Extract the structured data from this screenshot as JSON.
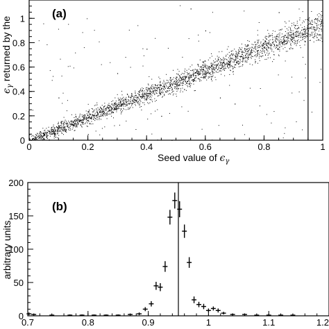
{
  "chart_data": [
    {
      "type": "scatter",
      "panel_label": "(a)",
      "xlabel": "Seed value of ε_γ",
      "ylabel": "ε_γ returned by the",
      "xlim": [
        0,
        1
      ],
      "ylim": [
        0,
        1.15
      ],
      "x_ticks": [
        0,
        0.2,
        0.4,
        0.6,
        0.8,
        1
      ],
      "x_tick_labels": [
        "0",
        "0.2",
        "0.4",
        "0.6",
        "0.8",
        "1"
      ],
      "y_ticks": [
        0,
        0.2,
        0.4,
        0.6,
        0.8,
        1
      ],
      "y_tick_labels": [
        "0",
        "0.2",
        "0.4",
        "0.6",
        "0.8",
        "1"
      ],
      "trend": {
        "slope": 0.95,
        "intercept": 0.0
      },
      "vertical_line_x": 0.95,
      "points": [
        [
          0.02,
          0.03
        ],
        [
          0.05,
          0.04
        ],
        [
          0.08,
          0.07
        ],
        [
          0.1,
          0.1
        ],
        [
          0.12,
          0.11
        ],
        [
          0.15,
          0.15
        ],
        [
          0.18,
          0.17
        ],
        [
          0.2,
          0.19
        ],
        [
          0.22,
          0.21
        ],
        [
          0.25,
          0.24
        ],
        [
          0.28,
          0.26
        ],
        [
          0.3,
          0.29
        ],
        [
          0.32,
          0.3
        ],
        [
          0.35,
          0.33
        ],
        [
          0.38,
          0.36
        ],
        [
          0.4,
          0.38
        ],
        [
          0.42,
          0.4
        ],
        [
          0.45,
          0.43
        ],
        [
          0.48,
          0.45
        ],
        [
          0.5,
          0.48
        ],
        [
          0.52,
          0.5
        ],
        [
          0.55,
          0.52
        ],
        [
          0.58,
          0.55
        ],
        [
          0.6,
          0.57
        ],
        [
          0.62,
          0.59
        ],
        [
          0.65,
          0.62
        ],
        [
          0.68,
          0.64
        ],
        [
          0.7,
          0.66
        ],
        [
          0.72,
          0.69
        ],
        [
          0.75,
          0.71
        ],
        [
          0.78,
          0.74
        ],
        [
          0.8,
          0.76
        ],
        [
          0.82,
          0.78
        ],
        [
          0.85,
          0.81
        ],
        [
          0.88,
          0.84
        ],
        [
          0.9,
          0.85
        ],
        [
          0.92,
          0.88
        ],
        [
          0.95,
          0.9
        ],
        [
          0.97,
          0.93
        ],
        [
          0.99,
          0.95
        ],
        [
          0.1,
          0.35
        ],
        [
          0.2,
          0.05
        ],
        [
          0.3,
          0.55
        ],
        [
          0.45,
          0.2
        ],
        [
          0.6,
          0.9
        ],
        [
          0.7,
          0.3
        ],
        [
          0.85,
          1.05
        ],
        [
          0.55,
          1.08
        ],
        [
          0.4,
          0.75
        ],
        [
          0.65,
          0.35
        ]
      ]
    },
    {
      "type": "scatter",
      "panel_label": "(b)",
      "xlabel": "",
      "ylabel": "arbitrary units",
      "xlim": [
        0.7,
        1.2
      ],
      "ylim": [
        0,
        200
      ],
      "x_ticks": [
        0.7,
        0.8,
        0.9,
        1,
        1.1,
        1.2
      ],
      "x_tick_labels": [
        "0.7",
        "0.8",
        "0.9",
        "1",
        "1.1",
        "1.2"
      ],
      "y_ticks": [
        0,
        50,
        100,
        150,
        200
      ],
      "y_tick_labels": [
        "0",
        "50",
        "100",
        "150",
        "200"
      ],
      "vertical_line_x": 0.95,
      "bin_halfwidth": 0.004,
      "points": [
        {
          "x": 0.702,
          "y": 3,
          "err": 2
        },
        {
          "x": 0.71,
          "y": 2,
          "err": 1.5
        },
        {
          "x": 0.74,
          "y": 1,
          "err": 1
        },
        {
          "x": 0.77,
          "y": 1,
          "err": 1
        },
        {
          "x": 0.79,
          "y": 1,
          "err": 1
        },
        {
          "x": 0.81,
          "y": 1,
          "err": 1
        },
        {
          "x": 0.83,
          "y": 1,
          "err": 1
        },
        {
          "x": 0.85,
          "y": 1,
          "err": 1
        },
        {
          "x": 0.87,
          "y": 2,
          "err": 1.5
        },
        {
          "x": 0.885,
          "y": 3,
          "err": 2
        },
        {
          "x": 0.895,
          "y": 10,
          "err": 3
        },
        {
          "x": 0.905,
          "y": 18,
          "err": 4
        },
        {
          "x": 0.913,
          "y": 45,
          "err": 6
        },
        {
          "x": 0.92,
          "y": 43,
          "err": 6
        },
        {
          "x": 0.928,
          "y": 74,
          "err": 8
        },
        {
          "x": 0.936,
          "y": 148,
          "err": 11
        },
        {
          "x": 0.944,
          "y": 173,
          "err": 12
        },
        {
          "x": 0.952,
          "y": 160,
          "err": 12
        },
        {
          "x": 0.96,
          "y": 127,
          "err": 10
        },
        {
          "x": 0.968,
          "y": 80,
          "err": 8
        },
        {
          "x": 0.976,
          "y": 24,
          "err": 5
        },
        {
          "x": 0.984,
          "y": 17,
          "err": 4
        },
        {
          "x": 0.992,
          "y": 14,
          "err": 4
        },
        {
          "x": 1.0,
          "y": 8,
          "err": 3
        },
        {
          "x": 1.008,
          "y": 11,
          "err": 3
        },
        {
          "x": 1.016,
          "y": 8,
          "err": 3
        },
        {
          "x": 1.025,
          "y": 4,
          "err": 2
        },
        {
          "x": 1.04,
          "y": 2,
          "err": 1.5
        },
        {
          "x": 1.06,
          "y": 2,
          "err": 1.5
        },
        {
          "x": 1.08,
          "y": 1,
          "err": 1
        },
        {
          "x": 1.1,
          "y": 1,
          "err": 1
        },
        {
          "x": 1.12,
          "y": 1,
          "err": 1
        },
        {
          "x": 1.14,
          "y": 1,
          "err": 1
        }
      ]
    }
  ]
}
